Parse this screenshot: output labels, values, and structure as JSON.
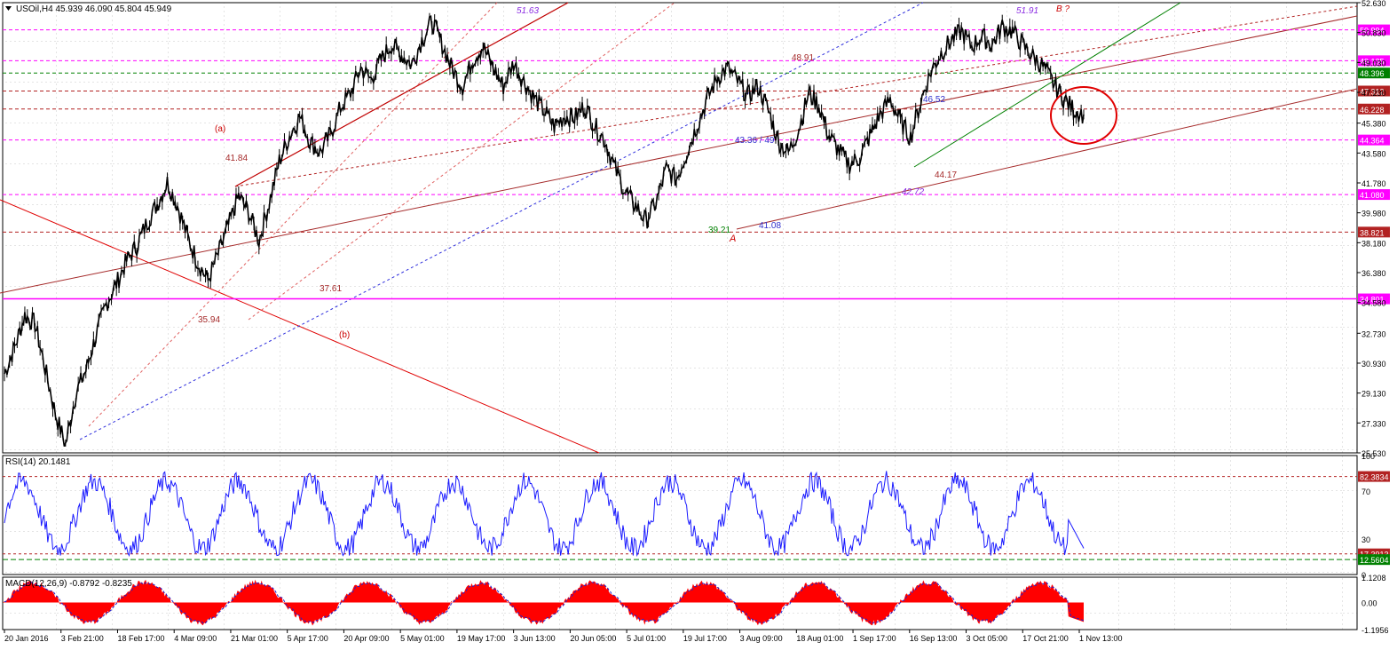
{
  "symbol_header": "USOil,H4  45.939 46.090 45.804 45.949",
  "rsi_header": "RSI(14) 20.1481",
  "macd_header": "MACD(12,26,9) -0.8792 -0.8235",
  "colors": {
    "price": "#000000",
    "rsi": "#1a1aff",
    "macd_hist": "#ff0000",
    "magenta_level": "#ff00ff",
    "darkred": "#b22222",
    "green": "#008000",
    "blue_dotted": "#3030dd"
  },
  "chart_data": [
    {
      "type": "line",
      "name": "price",
      "y_axis_ticks": [
        "52.630",
        "50.830",
        "49.030",
        "47.230",
        "45.380",
        "43.580",
        "41.780",
        "39.980",
        "38.180",
        "36.380",
        "34.580",
        "32.730",
        "30.930",
        "29.130",
        "27.330",
        "25.530"
      ],
      "ylim": [
        25.53,
        52.63
      ],
      "x_ticks": [
        "20 Jan 2016",
        "3 Feb 21:00",
        "18 Feb 17:00",
        "4 Mar 09:00",
        "21 Mar 01:00",
        "5 Apr 17:00",
        "20 Apr 09:00",
        "5 May 01:00",
        "19 May 17:00",
        "3 Jun 13:00",
        "20 Jun 05:00",
        "5 Jul 01:00",
        "19 Jul 17:00",
        "3 Aug 09:00",
        "18 Aug 01:00",
        "1 Sep 17:00",
        "16 Sep 13:00",
        "3 Oct 05:00",
        "17 Oct 21:00",
        "1 Nov 13:00"
      ],
      "price_anchors": [
        [
          0,
          30.3
        ],
        [
          1,
          31.9
        ],
        [
          2,
          33.8
        ],
        [
          3,
          33.3
        ],
        [
          4,
          30.6
        ],
        [
          5,
          27.9
        ],
        [
          6,
          26.0
        ],
        [
          7,
          29.1
        ],
        [
          8,
          30.5
        ],
        [
          9,
          32.6
        ],
        [
          10,
          34.5
        ],
        [
          11,
          35.7
        ],
        [
          12,
          37.1
        ],
        [
          13,
          38.0
        ],
        [
          14,
          39.4
        ],
        [
          15,
          40.5
        ],
        [
          16,
          41.8
        ],
        [
          17,
          40.4
        ],
        [
          18,
          38.5
        ],
        [
          19,
          37.0
        ],
        [
          20,
          35.9
        ],
        [
          21,
          37.5
        ],
        [
          22,
          39.2
        ],
        [
          23,
          41.0
        ],
        [
          24,
          40.0
        ],
        [
          25,
          38.3
        ],
        [
          26,
          40.6
        ],
        [
          27,
          43.1
        ],
        [
          28,
          44.6
        ],
        [
          29,
          45.8
        ],
        [
          30,
          44.3
        ],
        [
          31,
          43.6
        ],
        [
          32,
          44.7
        ],
        [
          33,
          46.3
        ],
        [
          34,
          47.2
        ],
        [
          35,
          48.7
        ],
        [
          36,
          48.0
        ],
        [
          37,
          49.2
        ],
        [
          38,
          50.1
        ],
        [
          39,
          49.5
        ],
        [
          40,
          48.9
        ],
        [
          41,
          50.4
        ],
        [
          42,
          51.5
        ],
        [
          43,
          50.1
        ],
        [
          44,
          48.6
        ],
        [
          45,
          47.6
        ],
        [
          46,
          49.2
        ],
        [
          47,
          50.0
        ],
        [
          48,
          48.7
        ],
        [
          49,
          47.6
        ],
        [
          50,
          49.0
        ],
        [
          51,
          47.9
        ],
        [
          52,
          46.9
        ],
        [
          53,
          46.1
        ],
        [
          54,
          45.2
        ],
        [
          55,
          45.8
        ],
        [
          56,
          45.7
        ],
        [
          57,
          46.4
        ],
        [
          58,
          45.2
        ],
        [
          59,
          44.3
        ],
        [
          60,
          42.6
        ],
        [
          61,
          41.2
        ],
        [
          62,
          40.4
        ],
        [
          63,
          39.5
        ],
        [
          64,
          40.6
        ],
        [
          65,
          42.6
        ],
        [
          66,
          42.0
        ],
        [
          67,
          43.6
        ],
        [
          68,
          45.2
        ],
        [
          69,
          46.8
        ],
        [
          70,
          48.1
        ],
        [
          71,
          48.7
        ],
        [
          72,
          47.9
        ],
        [
          73,
          47.0
        ],
        [
          74,
          47.6
        ],
        [
          75,
          46.2
        ],
        [
          76,
          44.3
        ],
        [
          77,
          43.6
        ],
        [
          78,
          45.0
        ],
        [
          79,
          47.2
        ],
        [
          80,
          46.4
        ],
        [
          81,
          44.6
        ],
        [
          82,
          43.7
        ],
        [
          83,
          42.9
        ],
        [
          84,
          43.3
        ],
        [
          85,
          44.6
        ],
        [
          86,
          45.9
        ],
        [
          87,
          46.8
        ],
        [
          88,
          45.5
        ],
        [
          89,
          44.5
        ],
        [
          90,
          46.7
        ],
        [
          91,
          48.5
        ],
        [
          92,
          49.6
        ],
        [
          93,
          50.4
        ],
        [
          94,
          50.9
        ],
        [
          95,
          50.0
        ],
        [
          96,
          50.6
        ],
        [
          97,
          50.1
        ],
        [
          98,
          51.2
        ],
        [
          99,
          50.9
        ],
        [
          100,
          50.1
        ],
        [
          101,
          49.4
        ],
        [
          102,
          48.8
        ],
        [
          103,
          47.8
        ],
        [
          104,
          46.9
        ],
        [
          105,
          46.2
        ],
        [
          106,
          45.9
        ]
      ],
      "levels": [
        {
          "value": "50.994",
          "color": "magenta"
        },
        {
          "value": "49.135",
          "color": "magenta"
        },
        {
          "value": "48.396",
          "color": "green"
        },
        {
          "value": "47.312",
          "color": "darkred"
        },
        {
          "value": "46.228",
          "color": "darkred"
        },
        {
          "value": "44.364",
          "color": "magenta"
        },
        {
          "value": "41.080",
          "color": "magenta"
        },
        {
          "value": "38.821",
          "color": "darkred"
        },
        {
          "value": "34.801",
          "color": "magenta"
        }
      ],
      "annotations": [
        "51.63",
        "41.84",
        "(a)",
        "35.94",
        "37.61",
        "(b)",
        "48.91",
        "43.36 / 49",
        "39.21",
        "41.08",
        "A",
        "46.52",
        "42.72",
        "44.17",
        "51.91",
        "B ?"
      ]
    },
    {
      "type": "line",
      "name": "RSI(14)",
      "value": 20.1481,
      "y_axis_ticks": [
        "100",
        "70",
        "30",
        "0"
      ],
      "ylim": [
        0,
        100
      ],
      "levels": [
        "82.3834",
        "17.3913",
        "12.5604"
      ]
    },
    {
      "type": "area",
      "name": "MACD(12,26,9)",
      "main": -0.8792,
      "signal": -0.8235,
      "y_axis_ticks": [
        "1.1208",
        "0.00",
        "-1.1956"
      ],
      "ylim": [
        -1.1956,
        1.1208
      ]
    }
  ]
}
